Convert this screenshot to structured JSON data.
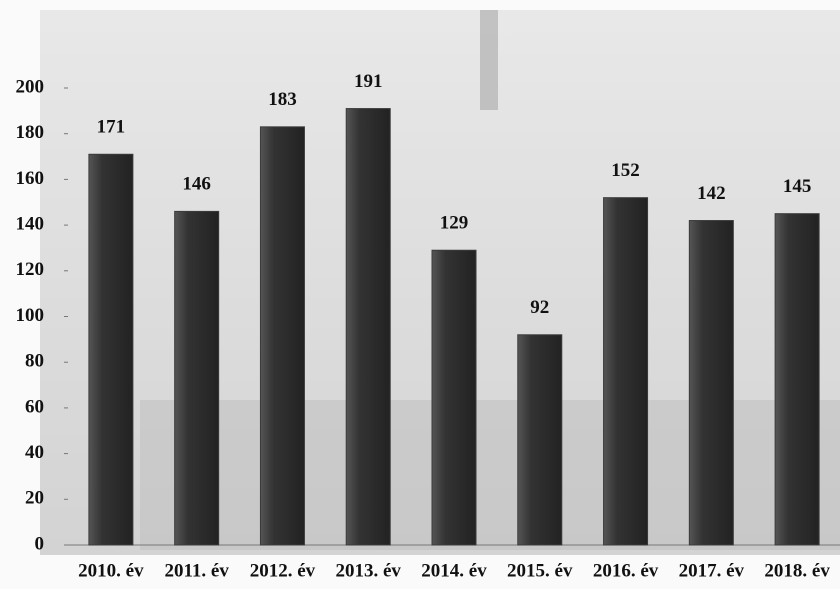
{
  "chart_data": {
    "type": "bar",
    "categories": [
      "2010. év",
      "2011. év",
      "2012. év",
      "2013. év",
      "2014. év",
      "2015. év",
      "2016. év",
      "2017. év",
      "2018. év"
    ],
    "values": [
      171,
      146,
      183,
      191,
      129,
      92,
      152,
      142,
      145
    ],
    "color": "#3b3b3b",
    "ylim": [
      0,
      200
    ],
    "yticks": [
      0,
      20,
      40,
      60,
      80,
      100,
      120,
      140,
      160,
      180,
      200
    ]
  }
}
